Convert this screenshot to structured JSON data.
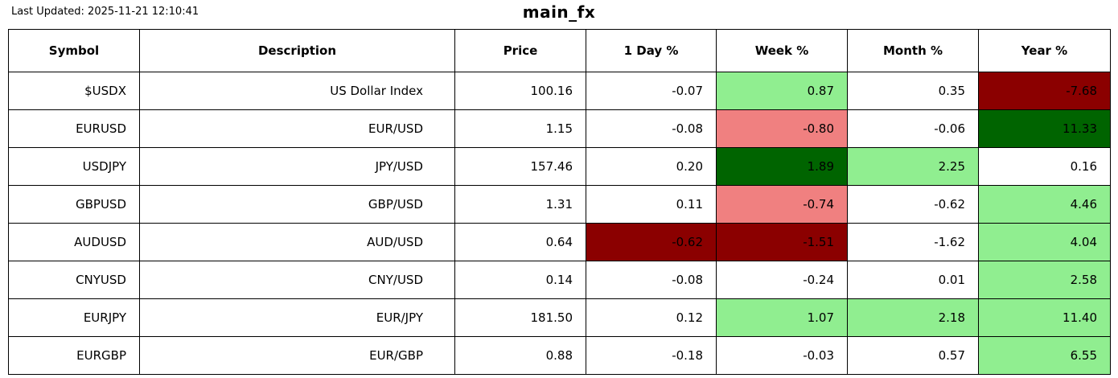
{
  "header": {
    "last_updated": "Last Updated: 2025-11-21 12:10:41",
    "title": "main_fx"
  },
  "colors": {
    "white": "#ffffff",
    "lightgreen": "#90ee90",
    "lightcoral": "#f08080",
    "darkgreen": "#006400",
    "darkred": "#8b0000",
    "border": "#000000",
    "text": "#000000"
  },
  "chart_data": {
    "type": "table",
    "title": "main_fx",
    "columns": [
      "Symbol",
      "Description",
      "Price",
      "1 Day %",
      "Week %",
      "Month %",
      "Year %"
    ],
    "rows": [
      [
        "$USDX",
        "US Dollar Index",
        "100.16",
        "-0.07",
        "0.87",
        "0.35",
        "-7.68"
      ],
      [
        "EURUSD",
        "EUR/USD",
        "1.15",
        "-0.08",
        "-0.80",
        "-0.06",
        "11.33"
      ],
      [
        "USDJPY",
        "JPY/USD",
        "157.46",
        "0.20",
        "1.89",
        "2.25",
        "0.16"
      ],
      [
        "GBPUSD",
        "GBP/USD",
        "1.31",
        "0.11",
        "-0.74",
        "-0.62",
        "4.46"
      ],
      [
        "AUDUSD",
        "AUD/USD",
        "0.64",
        "-0.62",
        "-1.51",
        "-1.62",
        "4.04"
      ],
      [
        "CNYUSD",
        "CNY/USD",
        "0.14",
        "-0.08",
        "-0.24",
        "0.01",
        "2.58"
      ],
      [
        "EURJPY",
        "EUR/JPY",
        "181.50",
        "0.12",
        "1.07",
        "2.18",
        "11.40"
      ],
      [
        "EURGBP",
        "EUR/GBP",
        "0.88",
        "-0.18",
        "-0.03",
        "0.57",
        "6.55"
      ]
    ],
    "cell_colors": [
      [
        "white",
        "white",
        "white",
        "white",
        "lightgreen",
        "white",
        "darkred"
      ],
      [
        "white",
        "white",
        "white",
        "white",
        "lightcoral",
        "white",
        "darkgreen"
      ],
      [
        "white",
        "white",
        "white",
        "white",
        "darkgreen",
        "lightgreen",
        "white"
      ],
      [
        "white",
        "white",
        "white",
        "white",
        "lightcoral",
        "white",
        "lightgreen"
      ],
      [
        "white",
        "white",
        "white",
        "darkred",
        "darkred",
        "white",
        "lightgreen"
      ],
      [
        "white",
        "white",
        "white",
        "white",
        "white",
        "white",
        "lightgreen"
      ],
      [
        "white",
        "white",
        "white",
        "white",
        "lightgreen",
        "lightgreen",
        "lightgreen"
      ],
      [
        "white",
        "white",
        "white",
        "white",
        "white",
        "white",
        "lightgreen"
      ]
    ]
  }
}
